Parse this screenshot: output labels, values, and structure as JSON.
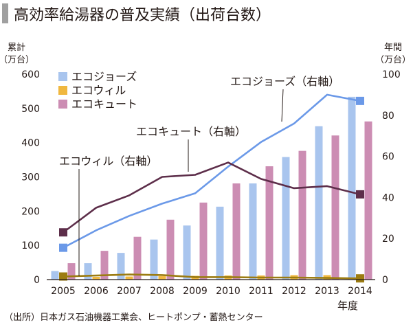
{
  "title": "高効率給湯器の普及実績（出荷台数）",
  "source": "（出所）日本ガス石油機器工業会、ヒートポンプ・蓄熱センター",
  "chart_data": {
    "type": "bar",
    "categories": [
      "2005",
      "2006",
      "2007",
      "2008",
      "2009",
      "2010",
      "2011",
      "2012",
      "2013",
      "2014"
    ],
    "xlabel": "年度",
    "y_left": {
      "label_line1": "累計",
      "label_line2": "（万台）",
      "ticks": [
        "0",
        "100",
        "200",
        "300",
        "400",
        "500",
        "600"
      ],
      "ylim": [
        0,
        600
      ]
    },
    "y_right": {
      "label_line1": "年間",
      "label_line2": "（万台）",
      "ticks": [
        "0",
        "20",
        "40",
        "60",
        "80",
        "100"
      ],
      "ylim": [
        0,
        100
      ]
    },
    "bar_series": [
      {
        "name": "エコジョーズ",
        "color": "#a9c5ee",
        "values": [
          25,
          48,
          78,
          117,
          158,
          213,
          281,
          358,
          448,
          534
        ]
      },
      {
        "name": "エコウィル",
        "color": "#f0b840",
        "values": [
          7,
          8,
          9,
          10,
          11,
          12,
          12,
          13,
          13,
          13
        ]
      },
      {
        "name": "エコキュート",
        "color": "#cc8db3",
        "values": [
          48,
          84,
          125,
          175,
          225,
          281,
          331,
          376,
          421,
          462
        ]
      }
    ],
    "line_series": [
      {
        "name": "エコジョーズ",
        "annotation": "エコジョーズ（右軸）",
        "color": "#6b99e8",
        "marker": "square",
        "values": [
          15.5,
          24,
          31,
          37,
          42,
          55,
          67,
          76,
          90,
          87
        ]
      },
      {
        "name": "エコキュート",
        "annotation": "エコキュート（右軸）",
        "color": "#5d2e4a",
        "marker": "square",
        "values": [
          23,
          35,
          41,
          50,
          51,
          57,
          49,
          44.5,
          45.5,
          41.5
        ]
      },
      {
        "name": "エコウィル",
        "annotation": "エコウィル（右軸）",
        "color": "#9c7c12",
        "marker": "square",
        "values": [
          1.5,
          2,
          2.5,
          2.2,
          1.2,
          1.2,
          1.0,
          1.0,
          0.8,
          0.6
        ]
      }
    ],
    "legend_position": "top-left"
  }
}
